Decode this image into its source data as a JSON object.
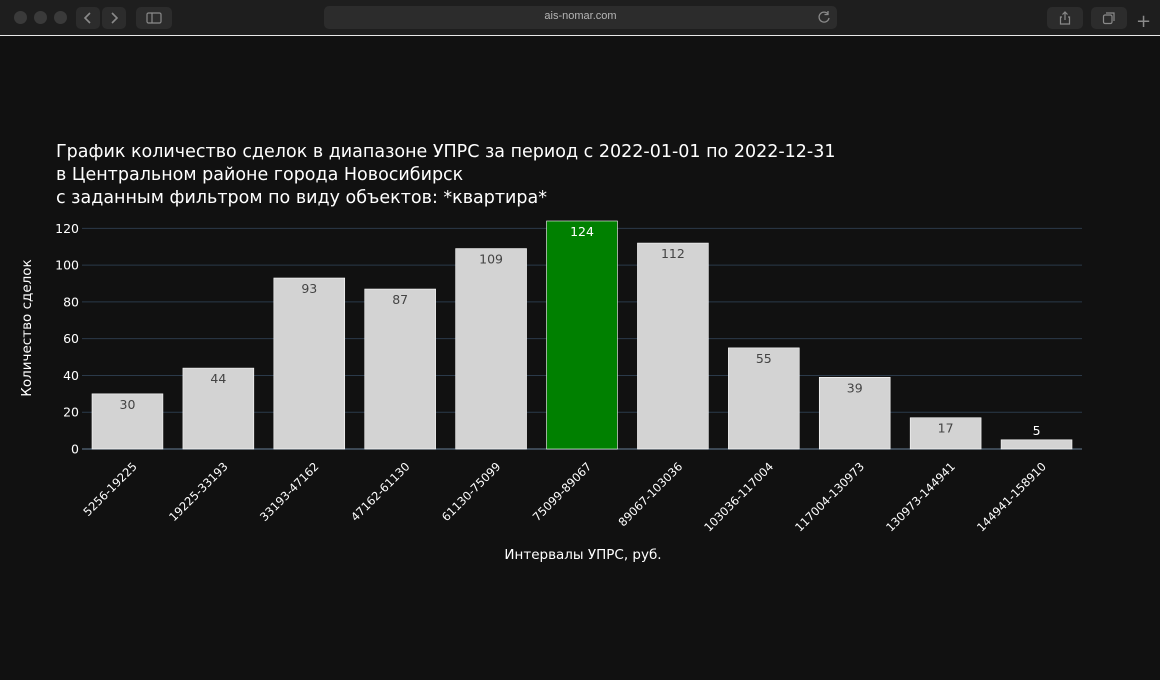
{
  "browser": {
    "url": "ais-nomar.com"
  },
  "chart_data": {
    "type": "bar",
    "title_lines": [
      "График количество сделок в диапазоне УПРС за период с 2022-01-01 по 2022-12-31",
      "в Центральном районе города Новосибирск",
      "с заданным фильтром по виду объектов: *квартира*"
    ],
    "xlabel": "Интервалы УПРС, руб.",
    "ylabel": "Количество сделок",
    "categories": [
      "5256-19225",
      "19225-33193",
      "33193-47162",
      "47162-61130",
      "61130-75099",
      "75099-89067",
      "89067-103036",
      "103036-117004",
      "117004-130973",
      "130973-144941",
      "144941-158910"
    ],
    "values": [
      30,
      44,
      93,
      87,
      109,
      124,
      112,
      55,
      39,
      17,
      5
    ],
    "highlight_index": 5,
    "bar_color": "#d3d3d3",
    "highlight_color": "#008000",
    "ylim": [
      0,
      124
    ],
    "yticks": [
      0,
      20,
      40,
      60,
      80,
      100,
      120
    ],
    "grid": true,
    "legend": "none"
  }
}
